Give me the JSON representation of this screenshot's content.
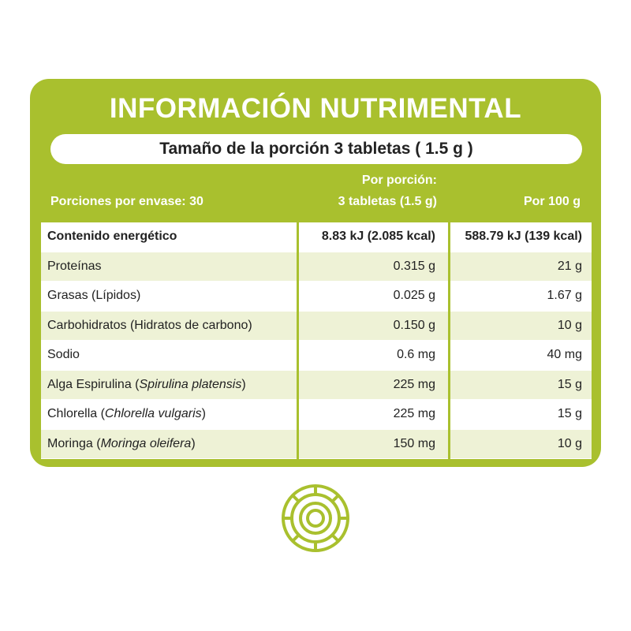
{
  "header": {
    "title": "INFORMACIÓN NUTRIMENTAL",
    "serving_size": "Tamaño de la porción 3 tabletas ( 1.5 g )"
  },
  "table": {
    "servings_label": "Porciones por envase: 30",
    "col_per_serving": [
      "Por porción:",
      "3 tabletas (1.5 g)"
    ],
    "col_per_100": "Por 100 g",
    "rows": [
      {
        "name": [
          "Contenido energético"
        ],
        "per_serving": "8.83 kJ (2.085 kcal)",
        "per_100": "588.79 kJ (139 kcal)",
        "bold": true
      },
      {
        "name": [
          "Proteínas"
        ],
        "per_serving": "0.315 g",
        "per_100": "21 g"
      },
      {
        "name": [
          "Grasas (Lípidos)"
        ],
        "per_serving": "0.025 g",
        "per_100": "1.67 g"
      },
      {
        "name": [
          "Carbohidratos (Hidratos de carbono)"
        ],
        "per_serving": "0.150 g",
        "per_100": "10 g"
      },
      {
        "name": [
          "Sodio"
        ],
        "per_serving": "0.6 mg",
        "per_100": "40 mg"
      },
      {
        "name": [
          "Alga Espirulina (",
          "Spirulina platensis",
          ")"
        ],
        "per_serving": "225 mg",
        "per_100": "15 g"
      },
      {
        "name": [
          "Chlorella (",
          "Chlorella vulgaris",
          ")"
        ],
        "per_serving": "225 mg",
        "per_100": "15 g"
      },
      {
        "name": [
          "Moringa (",
          "Moringa oleifera",
          ")"
        ],
        "per_serving": "150 mg",
        "per_100": "10 g"
      }
    ]
  }
}
